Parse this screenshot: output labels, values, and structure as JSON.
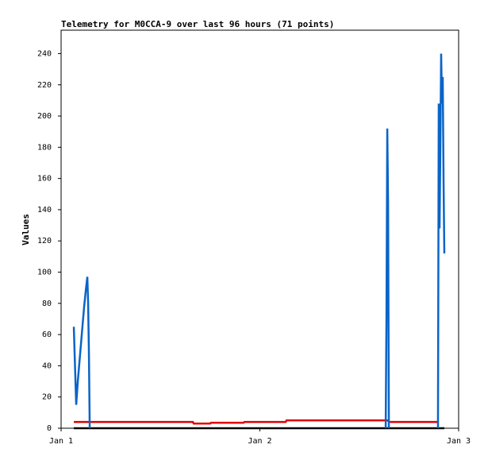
{
  "chart_data": {
    "type": "line",
    "title": "Telemetry for M0CCA-9 over last 96 hours (71 points)",
    "y_label": "Values",
    "x": [
      0.064,
      0.068,
      0.076,
      0.084,
      0.092,
      0.1,
      0.108,
      0.116,
      0.124,
      0.132,
      0.136,
      0.14,
      0.144,
      0.291,
      0.491,
      0.663,
      0.667,
      0.75,
      0.754,
      0.918,
      0.922,
      1.13,
      1.134,
      1.369,
      1.633,
      1.637,
      1.641,
      1.645,
      1.649,
      1.768,
      1.896,
      1.9,
      1.904,
      1.908,
      1.912,
      1.916,
      1.92,
      1.924,
      1.928
    ],
    "series": [
      {
        "color": "#000000",
        "values": [
          0,
          0,
          0,
          0,
          0,
          0,
          0,
          0,
          0,
          0,
          0,
          0,
          0,
          0,
          0,
          0,
          0,
          0,
          0,
          0,
          0,
          0,
          0,
          0,
          0,
          0,
          0,
          0,
          0,
          0,
          0,
          0,
          0,
          0,
          0,
          0,
          0,
          0,
          0
        ]
      },
      {
        "color": "#e00000",
        "values": [
          4,
          4,
          4,
          4,
          4,
          4,
          4,
          4,
          4,
          4,
          4,
          4,
          4,
          4,
          4,
          4,
          3,
          3,
          3.5,
          3.5,
          4,
          4,
          5,
          5,
          5,
          5,
          5,
          5,
          4,
          4,
          4,
          null,
          null,
          null,
          null,
          null,
          null,
          null,
          null
        ]
      },
      {
        "color": "#0a64c8",
        "values": [
          65,
          48,
          15,
          30,
          42,
          54,
          66,
          78,
          88,
          97,
          80,
          48,
          0,
          null,
          null,
          null,
          null,
          null,
          null,
          null,
          null,
          null,
          null,
          null,
          0,
          72,
          192,
          145,
          0,
          null,
          0,
          208,
          128,
          180,
          240,
          208,
          225,
          160,
          112
        ]
      }
    ],
    "xlim": [
      0,
      2
    ],
    "xticks": [
      {
        "value": 0,
        "label": "Jan 1"
      },
      {
        "value": 1,
        "label": "Jan 2"
      },
      {
        "value": 2,
        "label": "Jan 3"
      }
    ],
    "ylim": [
      0,
      255
    ],
    "yticks": [
      0,
      20,
      40,
      60,
      80,
      100,
      120,
      140,
      160,
      180,
      200,
      220,
      240
    ]
  }
}
